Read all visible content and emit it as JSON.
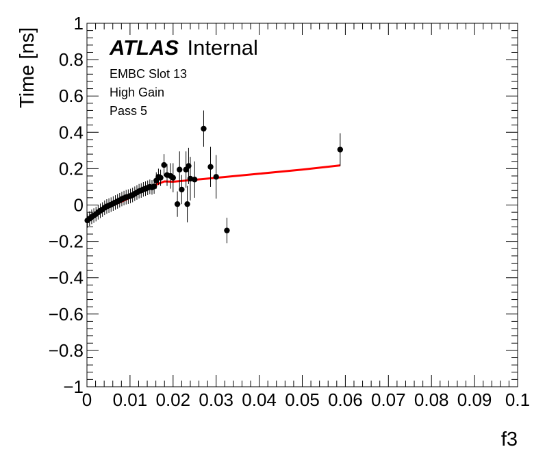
{
  "chart_data": {
    "type": "scatter",
    "xlabel": "f3",
    "ylabel": "Time [ns]",
    "xlim": [
      0,
      0.1
    ],
    "ylim": [
      -1,
      1
    ],
    "x_ticks": [
      "0",
      "0.01",
      "0.02",
      "0.03",
      "0.04",
      "0.05",
      "0.06",
      "0.07",
      "0.08",
      "0.09",
      "0.1"
    ],
    "y_ticks": [
      "−1",
      "−0.8",
      "−0.6",
      "−0.4",
      "−0.2",
      "0",
      "0.2",
      "0.4",
      "0.6",
      "0.8",
      "1"
    ],
    "label_atlas": "ATLAS",
    "label_internal": "Internal",
    "notes": [
      "EMBC Slot 13",
      "High Gain",
      "Pass 5"
    ],
    "points": [
      {
        "x": 0.0001,
        "y": -0.085,
        "err": 0.04
      },
      {
        "x": 0.0006,
        "y": -0.075,
        "err": 0.04
      },
      {
        "x": 0.0011,
        "y": -0.065,
        "err": 0.04
      },
      {
        "x": 0.0016,
        "y": -0.058,
        "err": 0.04
      },
      {
        "x": 0.0021,
        "y": -0.05,
        "err": 0.04
      },
      {
        "x": 0.0026,
        "y": -0.04,
        "err": 0.04
      },
      {
        "x": 0.0031,
        "y": -0.032,
        "err": 0.04
      },
      {
        "x": 0.0036,
        "y": -0.025,
        "err": 0.04
      },
      {
        "x": 0.0041,
        "y": -0.015,
        "err": 0.04
      },
      {
        "x": 0.0046,
        "y": -0.008,
        "err": 0.04
      },
      {
        "x": 0.0051,
        "y": -0.003,
        "err": 0.04
      },
      {
        "x": 0.0056,
        "y": 0.002,
        "err": 0.04
      },
      {
        "x": 0.0061,
        "y": 0.008,
        "err": 0.04
      },
      {
        "x": 0.0066,
        "y": 0.014,
        "err": 0.04
      },
      {
        "x": 0.0071,
        "y": 0.02,
        "err": 0.04
      },
      {
        "x": 0.0076,
        "y": 0.026,
        "err": 0.04
      },
      {
        "x": 0.0081,
        "y": 0.033,
        "err": 0.04
      },
      {
        "x": 0.0086,
        "y": 0.038,
        "err": 0.04
      },
      {
        "x": 0.0091,
        "y": 0.043,
        "err": 0.04
      },
      {
        "x": 0.0096,
        "y": 0.046,
        "err": 0.04
      },
      {
        "x": 0.0101,
        "y": 0.05,
        "err": 0.04
      },
      {
        "x": 0.0106,
        "y": 0.055,
        "err": 0.04
      },
      {
        "x": 0.0111,
        "y": 0.062,
        "err": 0.04
      },
      {
        "x": 0.0116,
        "y": 0.069,
        "err": 0.04
      },
      {
        "x": 0.0121,
        "y": 0.076,
        "err": 0.04
      },
      {
        "x": 0.0126,
        "y": 0.08,
        "err": 0.04
      },
      {
        "x": 0.0131,
        "y": 0.086,
        "err": 0.04
      },
      {
        "x": 0.0136,
        "y": 0.09,
        "err": 0.04
      },
      {
        "x": 0.0141,
        "y": 0.095,
        "err": 0.04
      },
      {
        "x": 0.0146,
        "y": 0.1,
        "err": 0.04
      },
      {
        "x": 0.0151,
        "y": 0.097,
        "err": 0.04
      },
      {
        "x": 0.0156,
        "y": 0.102,
        "err": 0.04
      },
      {
        "x": 0.0161,
        "y": 0.135,
        "err": 0.045
      },
      {
        "x": 0.0166,
        "y": 0.155,
        "err": 0.045
      },
      {
        "x": 0.0171,
        "y": 0.15,
        "err": 0.045
      },
      {
        "x": 0.0179,
        "y": 0.22,
        "err": 0.06
      },
      {
        "x": 0.0186,
        "y": 0.165,
        "err": 0.06
      },
      {
        "x": 0.0194,
        "y": 0.16,
        "err": 0.07
      },
      {
        "x": 0.02,
        "y": 0.15,
        "err": 0.08
      },
      {
        "x": 0.0215,
        "y": 0.195,
        "err": 0.1
      },
      {
        "x": 0.022,
        "y": 0.085,
        "err": 0.08
      },
      {
        "x": 0.023,
        "y": 0.195,
        "err": 0.1
      },
      {
        "x": 0.0233,
        "y": 0.005,
        "err": 0.1
      },
      {
        "x": 0.0236,
        "y": 0.215,
        "err": 0.1
      },
      {
        "x": 0.024,
        "y": 0.145,
        "err": 0.12
      },
      {
        "x": 0.025,
        "y": 0.14,
        "err": 0.1
      },
      {
        "x": 0.0271,
        "y": 0.42,
        "err": 0.1
      },
      {
        "x": 0.0287,
        "y": 0.21,
        "err": 0.11
      },
      {
        "x": 0.03,
        "y": 0.155,
        "err": 0.12
      },
      {
        "x": 0.0325,
        "y": -0.14,
        "err": 0.07
      },
      {
        "x": 0.0588,
        "y": 0.305,
        "err": 0.09
      },
      {
        "x": 0.021,
        "y": 0.005,
        "err": 0.07
      }
    ],
    "fit": {
      "color": "#ff0000",
      "x": [
        0,
        0.002,
        0.004,
        0.006,
        0.008,
        0.01,
        0.012,
        0.014,
        0.016,
        0.018,
        0.02,
        0.03,
        0.04,
        0.05,
        0.0588
      ],
      "y": [
        -0.085,
        -0.055,
        -0.025,
        -0.002,
        0.018,
        0.04,
        0.068,
        0.09,
        0.112,
        0.13,
        0.128,
        0.15,
        0.172,
        0.195,
        0.218
      ]
    }
  }
}
